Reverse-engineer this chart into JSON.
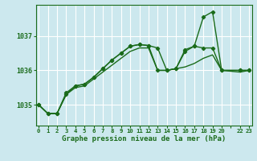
{
  "background_color": "#cce8ee",
  "grid_color": "#ffffff",
  "line_color": "#1a6b1a",
  "marker_color": "#1a6b1a",
  "xlabel": "Graphe pression niveau de la mer (hPa)",
  "xlabel_color": "#1a6b1a",
  "tick_color": "#1a6b1a",
  "ylim": [
    1034.4,
    1037.9
  ],
  "yticks": [
    1035,
    1036,
    1037
  ],
  "xlim": [
    -0.3,
    23.3
  ],
  "xtick_labels": [
    "0",
    "1",
    "2",
    "3",
    "4",
    "5",
    "6",
    "7",
    "8",
    "9",
    "10",
    "11",
    "12",
    "13",
    "14",
    "15",
    "16",
    "17",
    "18",
    "19",
    "20",
    "",
    "22",
    "23"
  ],
  "series1_x": [
    0,
    1,
    2,
    3,
    4,
    5,
    6,
    7,
    8,
    9,
    10,
    11,
    12,
    13,
    14,
    15,
    16,
    17,
    18,
    19,
    20,
    22,
    23
  ],
  "series1_y": [
    1035.0,
    1034.75,
    1034.75,
    1035.3,
    1035.5,
    1035.55,
    1035.75,
    1035.95,
    1036.15,
    1036.35,
    1036.55,
    1036.65,
    1036.65,
    1036.0,
    1036.0,
    1036.05,
    1036.1,
    1036.2,
    1036.35,
    1036.45,
    1036.0,
    1035.95,
    1036.0
  ],
  "series2_x": [
    0,
    1,
    2,
    3,
    4,
    5,
    6,
    7,
    8,
    9,
    10,
    11,
    12,
    13,
    14,
    15,
    16,
    17,
    18,
    19,
    20,
    22,
    23
  ],
  "series2_y": [
    1035.0,
    1034.75,
    1034.75,
    1035.35,
    1035.55,
    1035.6,
    1035.8,
    1036.05,
    1036.3,
    1036.5,
    1036.7,
    1036.75,
    1036.72,
    1036.65,
    1036.0,
    1036.05,
    1036.6,
    1036.7,
    1036.65,
    1036.65,
    1036.0,
    1036.0,
    1036.0
  ],
  "series3_x": [
    0,
    1,
    2,
    3,
    4,
    5,
    6,
    7,
    8,
    9,
    10,
    11,
    12,
    13,
    14,
    15,
    16,
    17,
    18,
    19,
    20,
    22,
    23
  ],
  "series3_y": [
    1035.0,
    1034.75,
    1034.75,
    1035.3,
    1035.55,
    1035.6,
    1035.8,
    1036.05,
    1036.3,
    1036.5,
    1036.7,
    1036.75,
    1036.72,
    1036.0,
    1036.0,
    1036.05,
    1036.55,
    1036.7,
    1037.55,
    1037.7,
    1036.0,
    1036.0,
    1036.0
  ]
}
